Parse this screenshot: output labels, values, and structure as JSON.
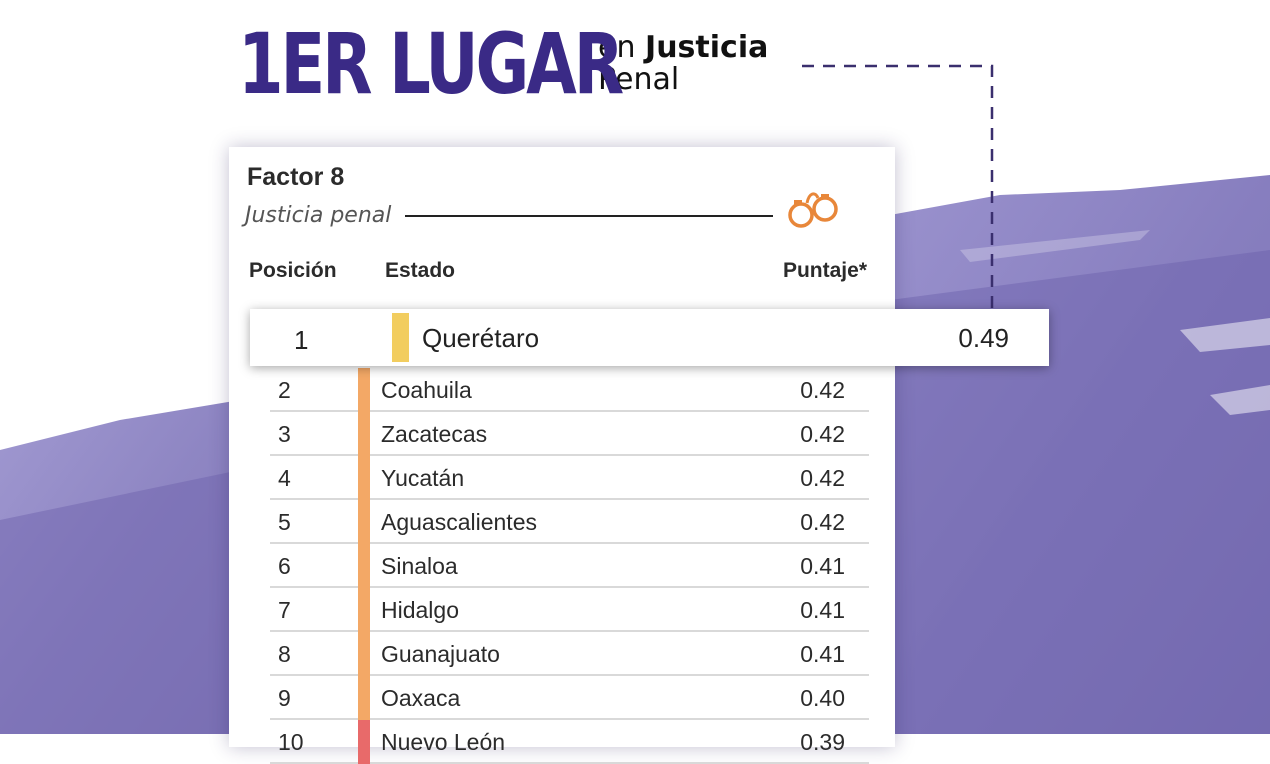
{
  "headline": {
    "main": "1ER LUGAR",
    "sub_prefix": "en",
    "sub_bold": "Justicia",
    "sub_line2": "Penal"
  },
  "card": {
    "title": "Factor 8",
    "subtitle": "Justicia penal",
    "icon": "handcuffs-icon",
    "icon_color": "#e8873a"
  },
  "colors": {
    "headline": "#3a2a86",
    "brush": "#7d73bd",
    "bar_first": "#f2cd5f",
    "bar_mid": "#f3a866",
    "bar_low": "#e86a6a"
  },
  "chart_data": {
    "type": "table",
    "title": "Factor 8",
    "subtitle": "Justicia penal",
    "columns": [
      "Posición",
      "Estado",
      "Puntaje*"
    ],
    "rows": [
      {
        "position": "1",
        "state": "Querétaro",
        "score": "0.49",
        "bar_color": "#f2cd5f"
      },
      {
        "position": "2",
        "state": "Coahuila",
        "score": "0.42",
        "bar_color": "#f3a866"
      },
      {
        "position": "3",
        "state": "Zacatecas",
        "score": "0.42",
        "bar_color": "#f3a866"
      },
      {
        "position": "4",
        "state": "Yucatán",
        "score": "0.42",
        "bar_color": "#f3a866"
      },
      {
        "position": "5",
        "state": "Aguascalientes",
        "score": "0.42",
        "bar_color": "#f3a866"
      },
      {
        "position": "6",
        "state": "Sinaloa",
        "score": "0.41",
        "bar_color": "#f3a866"
      },
      {
        "position": "7",
        "state": "Hidalgo",
        "score": "0.41",
        "bar_color": "#f3a866"
      },
      {
        "position": "8",
        "state": "Guanajuato",
        "score": "0.41",
        "bar_color": "#f3a866"
      },
      {
        "position": "9",
        "state": "Oaxaca",
        "score": "0.40",
        "bar_color": "#f3a866"
      },
      {
        "position": "10",
        "state": "Nuevo León",
        "score": "0.39",
        "bar_color": "#e86a6a"
      }
    ]
  }
}
